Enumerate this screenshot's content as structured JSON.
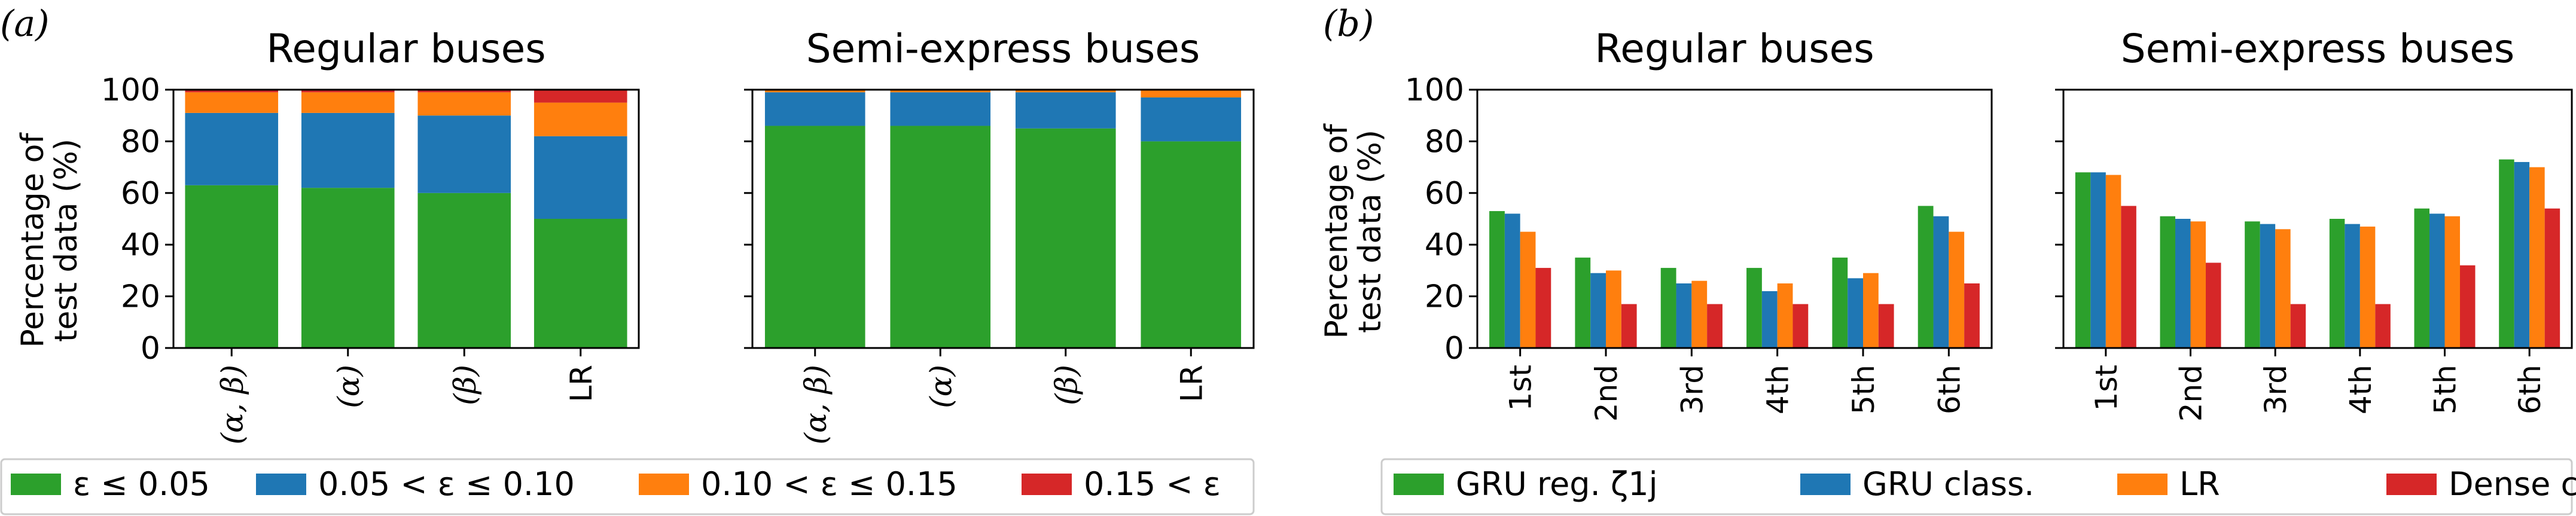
{
  "panel_letters": {
    "a": "(a)",
    "b": "(b)"
  },
  "colors": {
    "green": "#2ca02c",
    "blue": "#1f77b4",
    "orange": "#ff7f0e",
    "red": "#d62728"
  },
  "legend_a": [
    "ε ≤ 0.05",
    "0.05 < ε ≤ 0.10",
    "0.10 < ε ≤ 0.15",
    "0.15 < ε"
  ],
  "legend_b": [
    "GRU reg. ζ1j",
    "GRU class.",
    "LR",
    "Dense class."
  ],
  "ylabel": [
    "Percentage of",
    "test data (%)"
  ],
  "chart_data": [
    {
      "type": "bar",
      "stacked": true,
      "title": "Regular buses",
      "ylabel": "Percentage of test data (%)",
      "ylim": [
        0,
        100
      ],
      "yticks": [
        0,
        20,
        40,
        60,
        80,
        100
      ],
      "categories": [
        "(α, β)",
        "(α)",
        "(β)",
        "LR"
      ],
      "series": [
        {
          "name": "ε ≤ 0.05",
          "values": [
            63,
            62,
            60,
            50
          ]
        },
        {
          "name": "0.05 < ε ≤ 0.10",
          "values": [
            28,
            29,
            30,
            32
          ]
        },
        {
          "name": "0.10 < ε ≤ 0.15",
          "values": [
            8,
            8,
            9,
            13
          ]
        },
        {
          "name": "0.15 < ε",
          "values": [
            1,
            1,
            1,
            5
          ]
        }
      ]
    },
    {
      "type": "bar",
      "stacked": true,
      "title": "Semi-express buses",
      "ylim": [
        0,
        100
      ],
      "categories": [
        "(α, β)",
        "(α)",
        "(β)",
        "LR"
      ],
      "series": [
        {
          "name": "ε ≤ 0.05",
          "values": [
            86,
            86,
            85,
            80
          ]
        },
        {
          "name": "0.05 < ε ≤ 0.10",
          "values": [
            13,
            13,
            14,
            17
          ]
        },
        {
          "name": "0.10 < ε ≤ 0.15",
          "values": [
            1,
            1,
            1,
            3
          ]
        },
        {
          "name": "0.15 < ε",
          "values": [
            0,
            0,
            0,
            0
          ]
        }
      ]
    },
    {
      "type": "bar",
      "stacked": false,
      "title": "Regular buses",
      "ylabel": "Percentage of test data (%)",
      "ylim": [
        0,
        100
      ],
      "yticks": [
        0,
        20,
        40,
        60,
        80,
        100
      ],
      "categories": [
        "1st",
        "2nd",
        "3rd",
        "4th",
        "5th",
        "6th"
      ],
      "series": [
        {
          "name": "GRU reg. ζ1j",
          "values": [
            53,
            35,
            31,
            31,
            35,
            55
          ]
        },
        {
          "name": "GRU class.",
          "values": [
            52,
            29,
            25,
            22,
            27,
            51
          ]
        },
        {
          "name": "LR",
          "values": [
            45,
            30,
            26,
            25,
            29,
            45
          ]
        },
        {
          "name": "Dense class.",
          "values": [
            31,
            17,
            17,
            17,
            17,
            25
          ]
        }
      ]
    },
    {
      "type": "bar",
      "stacked": false,
      "title": "Semi-express buses",
      "ylim": [
        0,
        100
      ],
      "categories": [
        "1st",
        "2nd",
        "3rd",
        "4th",
        "5th",
        "6th"
      ],
      "series": [
        {
          "name": "GRU reg. ζ1j",
          "values": [
            68,
            51,
            49,
            50,
            54,
            73
          ]
        },
        {
          "name": "GRU class.",
          "values": [
            68,
            50,
            48,
            48,
            52,
            72
          ]
        },
        {
          "name": "LR",
          "values": [
            67,
            49,
            46,
            47,
            51,
            70
          ]
        },
        {
          "name": "Dense class.",
          "values": [
            55,
            33,
            17,
            17,
            32,
            54
          ]
        }
      ]
    }
  ]
}
